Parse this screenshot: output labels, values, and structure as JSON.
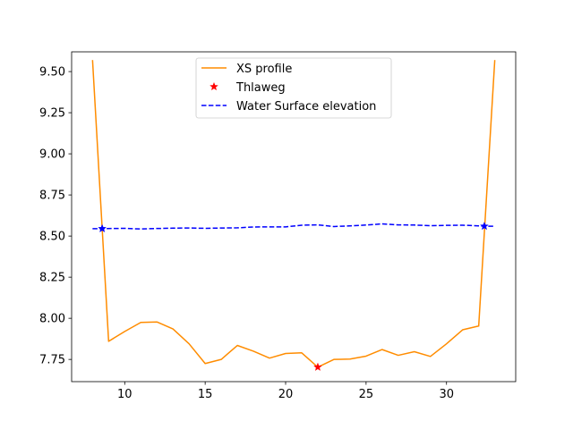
{
  "chart_data": {
    "type": "line",
    "title": "",
    "xlabel": "",
    "ylabel": "",
    "xlim": [
      6.7,
      34.3
    ],
    "ylim": [
      7.615,
      9.62
    ],
    "xticks": [
      10,
      15,
      20,
      25,
      30
    ],
    "yticks": [
      7.75,
      8.0,
      8.25,
      8.5,
      8.75,
      9.0,
      9.25,
      9.5
    ],
    "ytick_labels": [
      "7.75",
      "8.00",
      "8.25",
      "8.50",
      "8.75",
      "9.00",
      "9.25",
      "9.50"
    ],
    "xtick_labels": [
      "10",
      "15",
      "20",
      "25",
      "30"
    ],
    "grid": false,
    "legend_position": "upper-center",
    "series": [
      {
        "name": "XS profile",
        "color": "#ff8c00",
        "style": "solid",
        "x": [
          8,
          9,
          10,
          11,
          12,
          13,
          14,
          15,
          16,
          17,
          18,
          19,
          20,
          21,
          22,
          23,
          24,
          25,
          26,
          27,
          28,
          29,
          30,
          31,
          32,
          33
        ],
        "y": [
          9.57,
          7.86,
          7.92,
          7.975,
          7.978,
          7.935,
          7.845,
          7.725,
          7.75,
          7.835,
          7.8,
          7.758,
          7.786,
          7.79,
          7.703,
          7.75,
          7.752,
          7.77,
          7.81,
          7.775,
          7.797,
          7.768,
          7.845,
          7.93,
          7.953,
          9.57
        ]
      },
      {
        "name": "Thlaweg",
        "color": "#ff0000",
        "style": "star-marker",
        "x": [
          22
        ],
        "y": [
          7.703
        ]
      },
      {
        "name": "Water Surface elevation",
        "color": "#0000ff",
        "style": "dashed",
        "x": [
          8,
          8.6,
          10,
          11,
          12,
          13,
          14,
          15,
          16,
          17,
          18,
          19,
          20,
          21,
          22,
          23,
          24,
          25,
          26,
          27,
          28,
          29,
          30,
          31,
          32,
          32.35,
          33
        ],
        "y": [
          8.545,
          8.545,
          8.547,
          8.543,
          8.546,
          8.548,
          8.549,
          8.547,
          8.549,
          8.55,
          8.555,
          8.556,
          8.556,
          8.566,
          8.568,
          8.558,
          8.562,
          8.567,
          8.574,
          8.568,
          8.567,
          8.563,
          8.565,
          8.566,
          8.562,
          8.56,
          8.56
        ],
        "markers": [
          {
            "x": 8.6,
            "y": 8.545
          },
          {
            "x": 32.35,
            "y": 8.56
          }
        ]
      }
    ]
  }
}
